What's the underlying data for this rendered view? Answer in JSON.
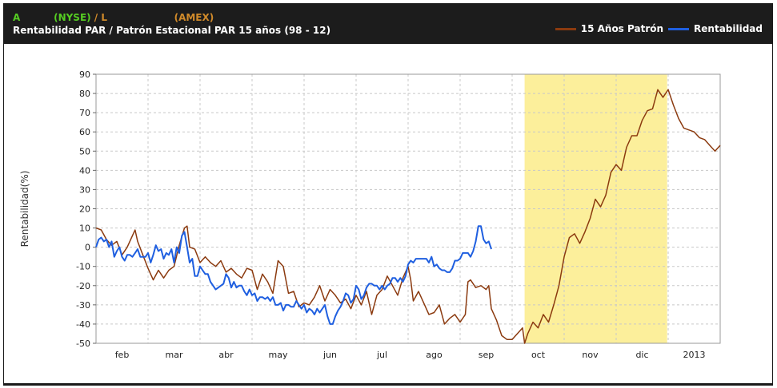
{
  "header": {
    "symbol_a": "A",
    "exchange_a": "(NYSE)",
    "separator": " / ",
    "symbol_b": "L",
    "exchange_b": "(AMEX)",
    "subtitle": "Rentabilidad PAR / Patrón Estacional PAR 15 años (98 - 12)"
  },
  "legend": [
    {
      "label": "15 Años Patrón",
      "color": "#8b3a0f"
    },
    {
      "label": "Rentabilidad",
      "color": "#1f5fe0"
    }
  ],
  "colors": {
    "header_bg": "#1c1c1c",
    "symbol_a": "#55cc22",
    "symbol_b": "#d08a2a",
    "highlight": "#fcef9b"
  },
  "chart_data": {
    "type": "line",
    "ylabel": "Rentabilidad(%)",
    "ylim": [
      -50,
      90
    ],
    "yticks": [
      -50,
      -40,
      -30,
      -20,
      -10,
      0,
      10,
      20,
      30,
      40,
      50,
      60,
      70,
      80,
      90
    ],
    "xlim": [
      0,
      12
    ],
    "month_labels": [
      {
        "label": "feb",
        "x": 0.5
      },
      {
        "label": "mar",
        "x": 1.5
      },
      {
        "label": "abr",
        "x": 2.5
      },
      {
        "label": "may",
        "x": 3.5
      },
      {
        "label": "jun",
        "x": 4.5
      },
      {
        "label": "jul",
        "x": 5.5
      },
      {
        "label": "ago",
        "x": 6.5
      },
      {
        "label": "sep",
        "x": 7.5
      },
      {
        "label": "oct",
        "x": 8.5
      },
      {
        "label": "nov",
        "x": 9.5
      },
      {
        "label": "dic",
        "x": 10.5
      },
      {
        "label": "2013",
        "x": 11.5
      }
    ],
    "highlight_range": [
      8.24,
      10.98
    ],
    "grid": true,
    "series": [
      {
        "name": "15 Años Patrón",
        "color": "#8b3a0f",
        "points": [
          [
            0.0,
            10
          ],
          [
            0.1,
            9
          ],
          [
            0.2,
            4
          ],
          [
            0.3,
            1
          ],
          [
            0.4,
            3
          ],
          [
            0.5,
            -4
          ],
          [
            0.6,
            0
          ],
          [
            0.7,
            6
          ],
          [
            0.75,
            9
          ],
          [
            0.8,
            3
          ],
          [
            0.9,
            -4
          ],
          [
            1.0,
            -11
          ],
          [
            1.1,
            -17
          ],
          [
            1.2,
            -12
          ],
          [
            1.3,
            -16
          ],
          [
            1.4,
            -12
          ],
          [
            1.5,
            -10
          ],
          [
            1.6,
            1
          ],
          [
            1.7,
            10
          ],
          [
            1.75,
            11
          ],
          [
            1.8,
            0
          ],
          [
            1.9,
            -1
          ],
          [
            2.0,
            -8
          ],
          [
            2.1,
            -5
          ],
          [
            2.2,
            -8
          ],
          [
            2.3,
            -10
          ],
          [
            2.4,
            -7
          ],
          [
            2.5,
            -13
          ],
          [
            2.6,
            -11
          ],
          [
            2.7,
            -14
          ],
          [
            2.8,
            -16
          ],
          [
            2.9,
            -11
          ],
          [
            3.0,
            -12
          ],
          [
            3.1,
            -22
          ],
          [
            3.2,
            -14
          ],
          [
            3.3,
            -18
          ],
          [
            3.4,
            -24
          ],
          [
            3.5,
            -7
          ],
          [
            3.6,
            -10
          ],
          [
            3.7,
            -24
          ],
          [
            3.8,
            -23
          ],
          [
            3.9,
            -31
          ],
          [
            4.0,
            -29
          ],
          [
            4.1,
            -30
          ],
          [
            4.2,
            -26
          ],
          [
            4.3,
            -20
          ],
          [
            4.4,
            -28
          ],
          [
            4.5,
            -22
          ],
          [
            4.6,
            -25
          ],
          [
            4.7,
            -29
          ],
          [
            4.8,
            -27
          ],
          [
            4.9,
            -32
          ],
          [
            5.0,
            -25
          ],
          [
            5.1,
            -30
          ],
          [
            5.2,
            -23
          ],
          [
            5.3,
            -35
          ],
          [
            5.4,
            -25
          ],
          [
            5.5,
            -22
          ],
          [
            5.6,
            -15
          ],
          [
            5.7,
            -20
          ],
          [
            5.8,
            -25
          ],
          [
            5.9,
            -16
          ],
          [
            6.0,
            -10
          ],
          [
            6.05,
            -17
          ],
          [
            6.1,
            -28
          ],
          [
            6.2,
            -23
          ],
          [
            6.3,
            -29
          ],
          [
            6.4,
            -35
          ],
          [
            6.5,
            -34
          ],
          [
            6.6,
            -30
          ],
          [
            6.7,
            -40
          ],
          [
            6.8,
            -37
          ],
          [
            6.9,
            -35
          ],
          [
            7.0,
            -39
          ],
          [
            7.1,
            -35
          ],
          [
            7.15,
            -18
          ],
          [
            7.2,
            -17
          ],
          [
            7.3,
            -21
          ],
          [
            7.4,
            -20
          ],
          [
            7.5,
            -22
          ],
          [
            7.55,
            -20
          ],
          [
            7.6,
            -32
          ],
          [
            7.7,
            -38
          ],
          [
            7.8,
            -46
          ],
          [
            7.9,
            -48
          ],
          [
            8.0,
            -48
          ],
          [
            8.1,
            -45
          ],
          [
            8.2,
            -42
          ],
          [
            8.24,
            -50
          ],
          [
            8.3,
            -45
          ],
          [
            8.4,
            -39
          ],
          [
            8.5,
            -42
          ],
          [
            8.6,
            -35
          ],
          [
            8.7,
            -39
          ],
          [
            8.8,
            -30
          ],
          [
            8.9,
            -20
          ],
          [
            9.0,
            -5
          ],
          [
            9.1,
            5
          ],
          [
            9.2,
            7
          ],
          [
            9.3,
            2
          ],
          [
            9.4,
            8
          ],
          [
            9.5,
            15
          ],
          [
            9.6,
            25
          ],
          [
            9.7,
            21
          ],
          [
            9.8,
            27
          ],
          [
            9.9,
            39
          ],
          [
            10.0,
            43
          ],
          [
            10.1,
            40
          ],
          [
            10.2,
            52
          ],
          [
            10.3,
            58
          ],
          [
            10.4,
            58
          ],
          [
            10.5,
            66
          ],
          [
            10.6,
            71
          ],
          [
            10.7,
            72
          ],
          [
            10.8,
            82
          ],
          [
            10.9,
            78
          ],
          [
            11.0,
            82
          ],
          [
            11.1,
            74
          ],
          [
            11.2,
            67
          ],
          [
            11.3,
            62
          ],
          [
            11.4,
            61
          ],
          [
            11.5,
            60
          ],
          [
            11.6,
            57
          ],
          [
            11.7,
            56
          ],
          [
            11.8,
            53
          ],
          [
            11.9,
            50
          ],
          [
            12.0,
            53
          ]
        ]
      },
      {
        "name": "Rentabilidad",
        "color": "#1f5fe0",
        "points": [
          [
            0.0,
            0
          ],
          [
            0.05,
            4
          ],
          [
            0.1,
            5
          ],
          [
            0.15,
            3
          ],
          [
            0.2,
            4
          ],
          [
            0.25,
            0
          ],
          [
            0.3,
            3
          ],
          [
            0.35,
            -5
          ],
          [
            0.4,
            -2
          ],
          [
            0.45,
            0
          ],
          [
            0.5,
            -5
          ],
          [
            0.55,
            -7
          ],
          [
            0.6,
            -4
          ],
          [
            0.65,
            -4
          ],
          [
            0.7,
            -5
          ],
          [
            0.75,
            -3
          ],
          [
            0.8,
            -1
          ],
          [
            0.85,
            -5
          ],
          [
            0.9,
            -5
          ],
          [
            0.95,
            -5
          ],
          [
            1.0,
            -3
          ],
          [
            1.05,
            -8
          ],
          [
            1.1,
            -4
          ],
          [
            1.15,
            1
          ],
          [
            1.2,
            -2
          ],
          [
            1.25,
            -1
          ],
          [
            1.3,
            -6
          ],
          [
            1.35,
            -3
          ],
          [
            1.4,
            -4
          ],
          [
            1.45,
            -1
          ],
          [
            1.5,
            -8
          ],
          [
            1.55,
            0
          ],
          [
            1.6,
            -3
          ],
          [
            1.65,
            6
          ],
          [
            1.7,
            8
          ],
          [
            1.75,
            0
          ],
          [
            1.8,
            -8
          ],
          [
            1.85,
            -6
          ],
          [
            1.9,
            -15
          ],
          [
            1.95,
            -15
          ],
          [
            2.0,
            -10
          ],
          [
            2.05,
            -12
          ],
          [
            2.1,
            -14
          ],
          [
            2.15,
            -14
          ],
          [
            2.2,
            -18
          ],
          [
            2.25,
            -20
          ],
          [
            2.3,
            -22
          ],
          [
            2.35,
            -21
          ],
          [
            2.4,
            -20
          ],
          [
            2.45,
            -19
          ],
          [
            2.5,
            -14
          ],
          [
            2.55,
            -16
          ],
          [
            2.6,
            -21
          ],
          [
            2.65,
            -18
          ],
          [
            2.7,
            -21
          ],
          [
            2.75,
            -20
          ],
          [
            2.8,
            -20
          ],
          [
            2.85,
            -23
          ],
          [
            2.9,
            -25
          ],
          [
            2.95,
            -22
          ],
          [
            3.0,
            -25
          ],
          [
            3.05,
            -24
          ],
          [
            3.1,
            -28
          ],
          [
            3.15,
            -26
          ],
          [
            3.2,
            -26
          ],
          [
            3.25,
            -27
          ],
          [
            3.3,
            -26
          ],
          [
            3.35,
            -28
          ],
          [
            3.4,
            -26
          ],
          [
            3.45,
            -30
          ],
          [
            3.5,
            -30
          ],
          [
            3.55,
            -29
          ],
          [
            3.6,
            -33
          ],
          [
            3.65,
            -30
          ],
          [
            3.7,
            -30
          ],
          [
            3.75,
            -31
          ],
          [
            3.8,
            -31
          ],
          [
            3.85,
            -28
          ],
          [
            3.9,
            -30
          ],
          [
            3.95,
            -32
          ],
          [
            4.0,
            -30
          ],
          [
            4.05,
            -34
          ],
          [
            4.1,
            -32
          ],
          [
            4.15,
            -33
          ],
          [
            4.2,
            -35
          ],
          [
            4.25,
            -32
          ],
          [
            4.3,
            -34
          ],
          [
            4.35,
            -32
          ],
          [
            4.4,
            -30
          ],
          [
            4.45,
            -36
          ],
          [
            4.5,
            -40
          ],
          [
            4.55,
            -40
          ],
          [
            4.6,
            -36
          ],
          [
            4.65,
            -33
          ],
          [
            4.7,
            -31
          ],
          [
            4.75,
            -28
          ],
          [
            4.8,
            -24
          ],
          [
            4.85,
            -25
          ],
          [
            4.9,
            -29
          ],
          [
            4.95,
            -27
          ],
          [
            5.0,
            -20
          ],
          [
            5.05,
            -22
          ],
          [
            5.1,
            -27
          ],
          [
            5.15,
            -25
          ],
          [
            5.2,
            -21
          ],
          [
            5.25,
            -19
          ],
          [
            5.3,
            -19
          ],
          [
            5.35,
            -20
          ],
          [
            5.4,
            -20
          ],
          [
            5.45,
            -22
          ],
          [
            5.5,
            -20
          ],
          [
            5.55,
            -22
          ],
          [
            5.6,
            -20
          ],
          [
            5.65,
            -19
          ],
          [
            5.7,
            -16
          ],
          [
            5.75,
            -16
          ],
          [
            5.8,
            -18
          ],
          [
            5.85,
            -16
          ],
          [
            5.9,
            -18
          ],
          [
            5.95,
            -15
          ],
          [
            6.0,
            -9
          ],
          [
            6.05,
            -7
          ],
          [
            6.1,
            -8
          ],
          [
            6.15,
            -6
          ],
          [
            6.2,
            -6
          ],
          [
            6.25,
            -6
          ],
          [
            6.3,
            -6
          ],
          [
            6.35,
            -6
          ],
          [
            6.4,
            -8
          ],
          [
            6.45,
            -5
          ],
          [
            6.5,
            -10
          ],
          [
            6.55,
            -9
          ],
          [
            6.6,
            -11
          ],
          [
            6.65,
            -12
          ],
          [
            6.7,
            -12
          ],
          [
            6.75,
            -13
          ],
          [
            6.8,
            -13
          ],
          [
            6.85,
            -11
          ],
          [
            6.9,
            -7
          ],
          [
            6.95,
            -7
          ],
          [
            7.0,
            -6
          ],
          [
            7.05,
            -3
          ],
          [
            7.1,
            -3
          ],
          [
            7.15,
            -3
          ],
          [
            7.2,
            -5
          ],
          [
            7.25,
            -2
          ],
          [
            7.3,
            3
          ],
          [
            7.35,
            11
          ],
          [
            7.4,
            11
          ],
          [
            7.45,
            4
          ],
          [
            7.5,
            2
          ],
          [
            7.55,
            3
          ],
          [
            7.6,
            -1
          ]
        ]
      }
    ]
  }
}
